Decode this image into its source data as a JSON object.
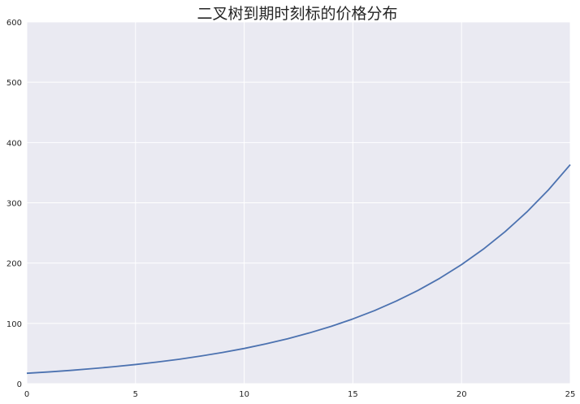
{
  "chart_data": {
    "type": "line",
    "title": "二叉树到期时刻标的价格分布",
    "xlabel": "",
    "ylabel": "",
    "xlim": [
      0,
      25
    ],
    "ylim": [
      0,
      600
    ],
    "x_ticks": [
      "0",
      "5",
      "10",
      "15",
      "20",
      "25"
    ],
    "y_ticks": [
      "0",
      "100",
      "200",
      "300",
      "400",
      "500",
      "600"
    ],
    "grid": true,
    "legend": "none",
    "colors": {
      "plot_background": "#eaeaf2",
      "grid": "#ffffff",
      "line": "#4c72b0"
    },
    "series": [
      {
        "x": [
          0,
          1,
          2,
          3,
          4,
          5,
          6,
          7,
          8,
          9,
          10,
          11,
          12,
          13,
          14,
          15,
          16,
          17,
          18,
          19,
          20,
          21,
          22,
          23,
          24,
          25
        ],
        "values": [
          17.3,
          19.5,
          22.0,
          24.9,
          28.1,
          31.8,
          35.9,
          40.5,
          45.8,
          51.7,
          58.4,
          66.0,
          74.5,
          84.2,
          95.1,
          107.4,
          121.3,
          137.1,
          154.8,
          174.9,
          197.5,
          223.1,
          252.0,
          284.7,
          321.6,
          363.3
        ]
      }
    ]
  }
}
